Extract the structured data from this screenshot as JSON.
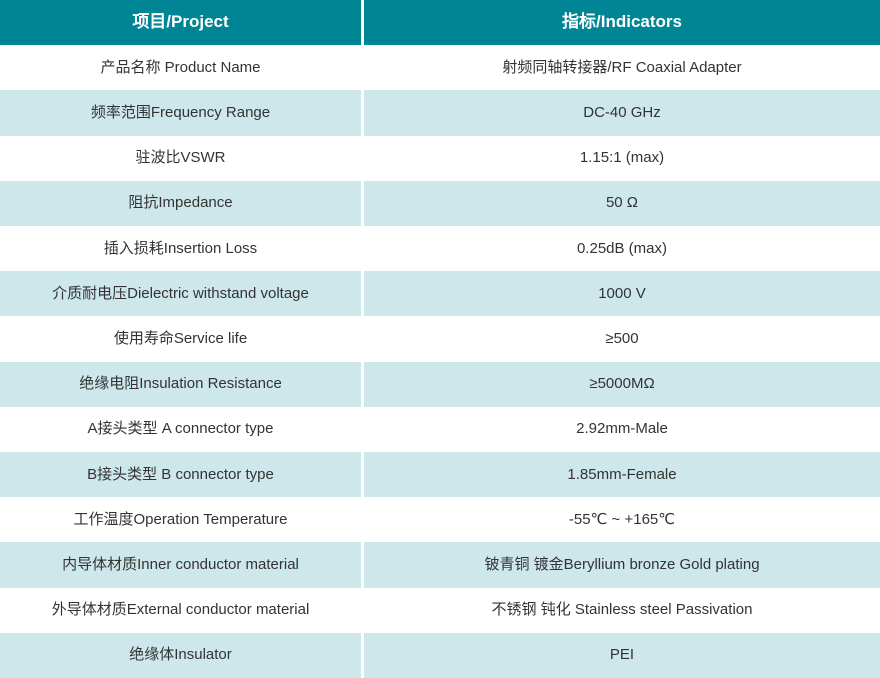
{
  "table": {
    "columns": [
      {
        "label": "项目/Project"
      },
      {
        "label": "指标/Indicators"
      }
    ],
    "rows": [
      {
        "project": "产品名称 Product Name",
        "indicator": "射频同轴转接器/RF Coaxial Adapter"
      },
      {
        "project": "频率范围Frequency Range",
        "indicator": "DC-40 GHz"
      },
      {
        "project": "驻波比VSWR",
        "indicator": "1.15:1 (max)"
      },
      {
        "project": "阻抗Impedance",
        "indicator": "50 Ω"
      },
      {
        "project": "插入损耗Insertion Loss",
        "indicator": "0.25dB (max)"
      },
      {
        "project": "介质耐电压Dielectric withstand voltage",
        "indicator": "1000 V"
      },
      {
        "project": "使用寿命Service life",
        "indicator": "≥500"
      },
      {
        "project": "绝缘电阻Insulation Resistance",
        "indicator": "≥5000MΩ"
      },
      {
        "project": "A接头类型 A connector type",
        "indicator": "2.92mm-Male"
      },
      {
        "project": "B接头类型 B connector type",
        "indicator": "1.85mm-Female"
      },
      {
        "project": "工作温度Operation Temperature",
        "indicator": "-55℃ ~ +165℃"
      },
      {
        "project": "内导体材质Inner conductor material",
        "indicator": "铍青铜 镀金Beryllium bronze Gold plating"
      },
      {
        "project": "外导体材质External conductor material",
        "indicator": "不锈钢 钝化 Stainless steel Passivation"
      },
      {
        "project": "绝缘体Insulator",
        "indicator": "PEI"
      }
    ],
    "colors": {
      "header_bg": "#008594",
      "header_text": "#ffffff",
      "row_bg": "#ffffff",
      "row_alt_bg": "#cde7eb",
      "text": "#333333",
      "divider": "#ffffff"
    }
  }
}
